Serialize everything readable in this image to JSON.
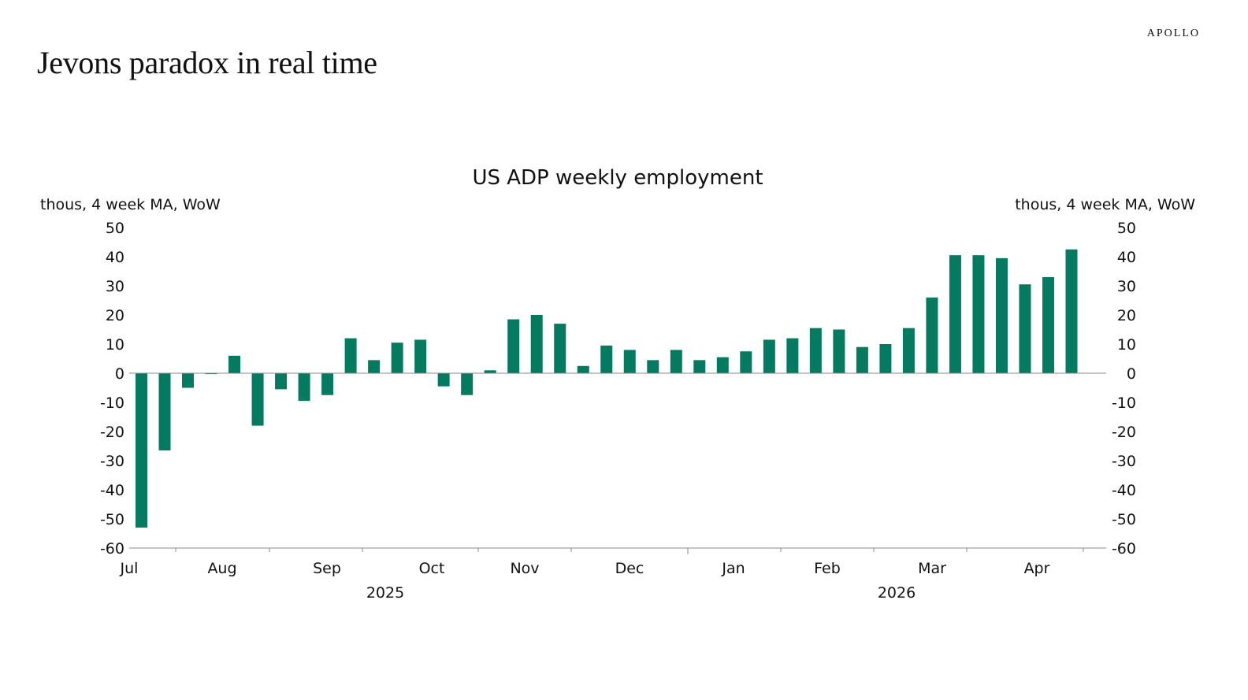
{
  "brand": "APOLLO",
  "slide_title": "Jevons paradox in real time",
  "colors": {
    "bar": "#047a60",
    "axis": "#888888",
    "text": "#111111"
  },
  "chart_data": {
    "type": "bar",
    "title": "US ADP weekly employment",
    "ylabel_left": "thous, 4 week MA, WoW",
    "ylabel_right": "thous, 4 week MA, WoW",
    "ylim": [
      -60,
      50
    ],
    "yticks": [
      50,
      40,
      30,
      20,
      10,
      0,
      -10,
      -20,
      -30,
      -40,
      -50,
      -60
    ],
    "month_labels": [
      "Jul",
      "Aug",
      "Sep",
      "Oct",
      "Nov",
      "Dec",
      "Jan",
      "Feb",
      "Mar",
      "Apr"
    ],
    "year_labels": [
      "2025",
      "2026"
    ],
    "grid": false,
    "legend": "none",
    "values": [
      -53,
      -26.5,
      -5,
      -0.3,
      6,
      -18,
      -5.5,
      -9.5,
      -7.5,
      12,
      4.5,
      10.5,
      11.5,
      -4.5,
      -7.5,
      1,
      18.5,
      20,
      17,
      2.5,
      9.5,
      8,
      4.5,
      8,
      4.5,
      5.5,
      7.5,
      11.5,
      12,
      15.5,
      15,
      9,
      10,
      15.5,
      26,
      40.5,
      40.5,
      39.5,
      30.5,
      33,
      42.5
    ]
  }
}
